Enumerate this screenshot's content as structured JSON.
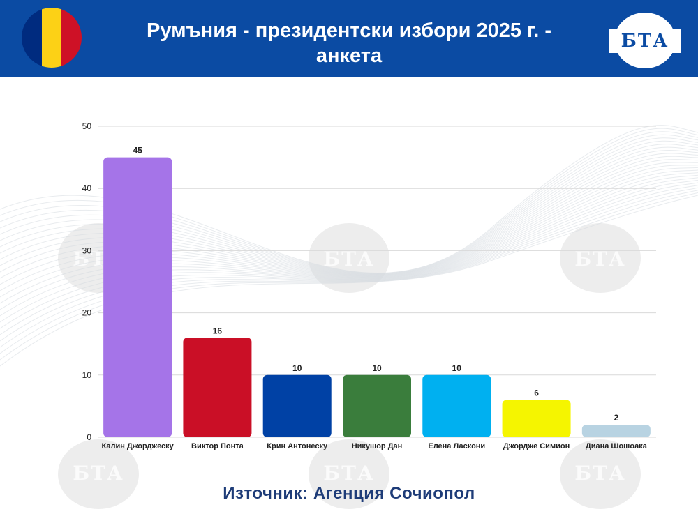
{
  "header": {
    "title_line1": "Румъния - президентски избори 2025 г. -",
    "title_line2": "анкета",
    "logo_text": "БТА",
    "watermark_text": "БТА"
  },
  "flag_colors": [
    "#002b7f",
    "#fcd116",
    "#ce1126"
  ],
  "colors": {
    "header_bg": "#0b4ba3",
    "source_text": "#1e3c78"
  },
  "source": "Източник: Агенция Сочиопол",
  "chart_data": {
    "type": "bar",
    "title": "",
    "xlabel": "",
    "ylabel": "",
    "ylim": [
      0,
      50
    ],
    "yticks": [
      0,
      10,
      20,
      30,
      40,
      50
    ],
    "grid": true,
    "categories": [
      "Калин Джорджеску",
      "Виктор Понта",
      "Крин Антонеску",
      "Никушор Дан",
      "Елена Ласкони",
      "Джордже Симион",
      "Диана Шошоака"
    ],
    "values": [
      45,
      16,
      10,
      10,
      10,
      6,
      2
    ],
    "colors": [
      "#a574e8",
      "#ca0f26",
      "#0041a5",
      "#3a7d3c",
      "#00b0f0",
      "#f5f500",
      "#b8d3e2"
    ]
  }
}
